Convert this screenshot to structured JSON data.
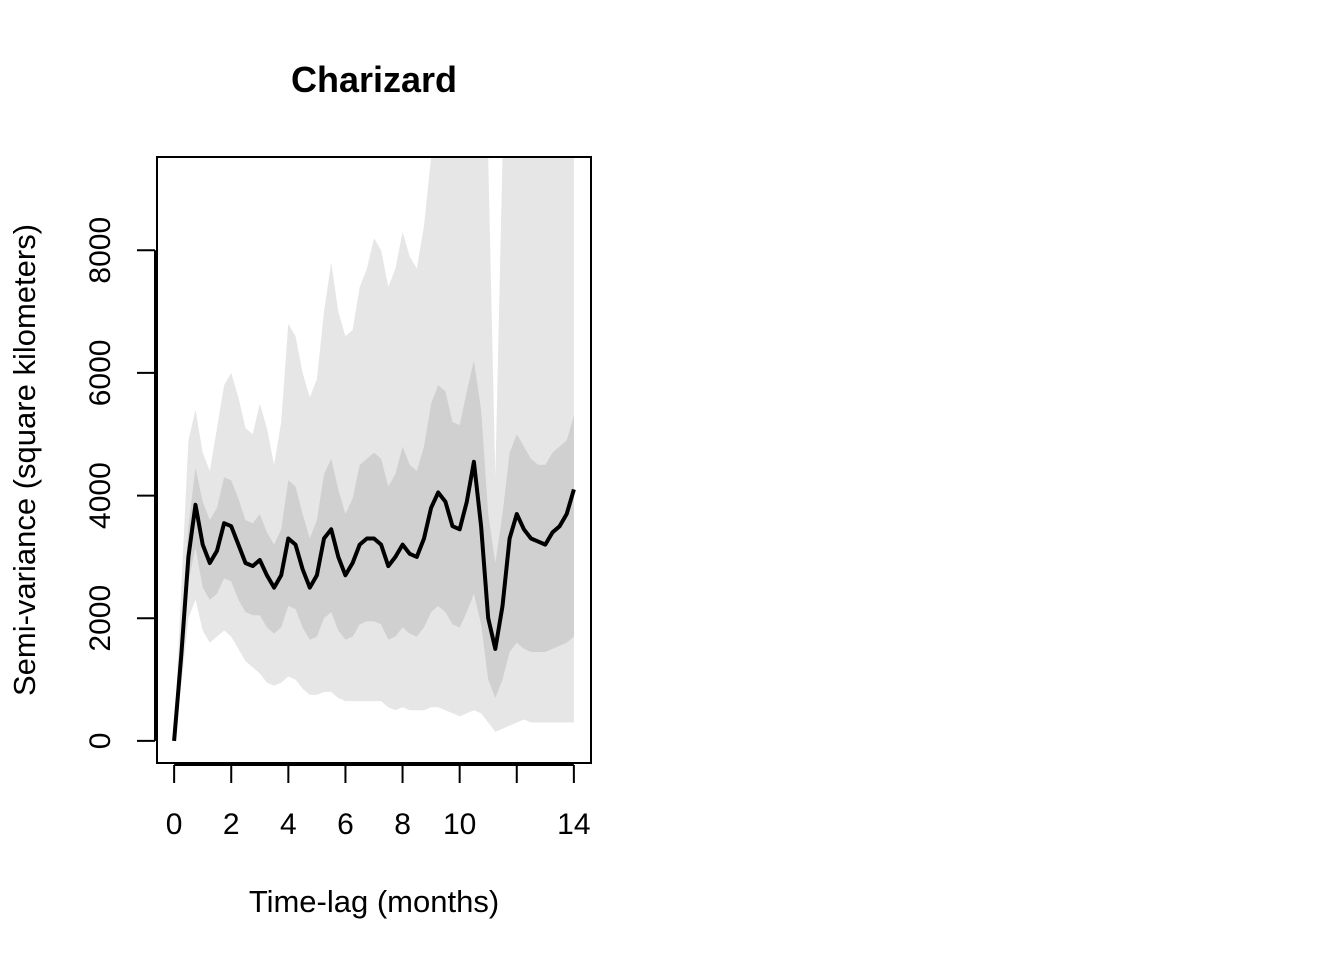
{
  "chart_data": {
    "type": "line",
    "title": "Charizard",
    "xlabel": "Time-lag (months)",
    "ylabel": "Semi-variance (square kilometers)",
    "xlim": [
      -0.6,
      14.6
    ],
    "ylim": [
      -360,
      9520
    ],
    "x_ticks": [
      0,
      2,
      4,
      6,
      8,
      10,
      12,
      14
    ],
    "x_tick_labels": [
      "0",
      "2",
      "4",
      "6",
      "8",
      "10",
      "",
      "14"
    ],
    "y_ticks": [
      0,
      2000,
      4000,
      6000,
      8000
    ],
    "y_tick_labels": [
      "0",
      "2000",
      "4000",
      "6000",
      "8000"
    ],
    "grid": false,
    "colors": {
      "line": "#000000",
      "band_outer": "#e6e6e6",
      "band_inner": "#d0d0d0"
    },
    "series": [
      {
        "x": [
          0,
          0.25,
          0.5,
          0.75,
          1.0,
          1.25,
          1.5,
          1.75,
          2.0,
          2.25,
          2.5,
          2.75,
          3.0,
          3.25,
          3.5,
          3.75,
          4.0,
          4.25,
          4.5,
          4.75,
          5.0,
          5.25,
          5.5,
          5.75,
          6.0,
          6.25,
          6.5,
          6.75,
          7.0,
          7.25,
          7.5,
          7.75,
          8.0,
          8.25,
          8.5,
          8.75,
          9.0,
          9.25,
          9.5,
          9.75,
          10.0,
          10.25,
          10.5,
          10.75,
          11.0,
          11.25,
          11.5,
          11.75,
          12.0,
          12.25,
          12.5,
          12.75,
          13.0,
          13.25,
          13.5,
          13.75,
          14.0
        ],
        "y": [
          0,
          1400,
          3000,
          3850,
          3200,
          2900,
          3100,
          3550,
          3500,
          3200,
          2900,
          2850,
          2950,
          2700,
          2500,
          2700,
          3300,
          3200,
          2800,
          2500,
          2700,
          3300,
          3450,
          3000,
          2700,
          2900,
          3200,
          3300,
          3300,
          3200,
          2850,
          3000,
          3200,
          3050,
          3000,
          3300,
          3800,
          4050,
          3900,
          3500,
          3450,
          3900,
          4550,
          3500,
          2000,
          1500,
          2200,
          3300,
          3700,
          3450,
          3300,
          3250,
          3200,
          3400,
          3500,
          3700,
          4100
        ]
      }
    ],
    "bands": [
      {
        "level": "outer",
        "x": [
          0,
          0.25,
          0.5,
          0.75,
          1.0,
          1.25,
          1.5,
          1.75,
          2.0,
          2.25,
          2.5,
          2.75,
          3.0,
          3.25,
          3.5,
          3.75,
          4.0,
          4.25,
          4.5,
          4.75,
          5.0,
          5.25,
          5.5,
          5.75,
          6.0,
          6.25,
          6.5,
          6.75,
          7.0,
          7.25,
          7.5,
          7.75,
          8.0,
          8.25,
          8.5,
          8.75,
          9.0,
          9.25,
          9.5,
          9.75,
          10.0,
          10.25,
          10.5,
          10.75,
          11.0,
          11.25,
          11.5,
          11.75,
          12.0,
          12.25,
          12.5,
          12.75,
          13.0,
          13.25,
          13.5,
          13.75,
          14.0
        ],
        "low": [
          0,
          900,
          2000,
          2300,
          1800,
          1600,
          1700,
          1800,
          1700,
          1500,
          1300,
          1200,
          1100,
          950,
          900,
          950,
          1050,
          1000,
          850,
          750,
          750,
          800,
          800,
          700,
          650,
          650,
          650,
          650,
          650,
          650,
          550,
          500,
          550,
          500,
          500,
          500,
          550,
          550,
          500,
          450,
          400,
          450,
          500,
          450,
          300,
          150,
          200,
          250,
          300,
          350,
          300,
          300,
          300,
          300,
          300,
          300,
          300
        ],
        "high": [
          0,
          2500,
          4900,
          5400,
          4700,
          4400,
          5100,
          5800,
          6000,
          5600,
          5100,
          5000,
          5500,
          5100,
          4500,
          5200,
          6800,
          6600,
          6000,
          5600,
          5900,
          7000,
          7800,
          7000,
          6600,
          6700,
          7400,
          7700,
          8200,
          8000,
          7400,
          7700,
          8300,
          7900,
          7700,
          8400,
          9520,
          9520,
          9520,
          9520,
          9520,
          9520,
          9520,
          9520,
          9520,
          4300,
          9520,
          9520,
          9520,
          9520,
          9520,
          9520,
          9520,
          9520,
          9520,
          9520,
          9520
        ]
      },
      {
        "level": "inner",
        "x": [
          0,
          0.25,
          0.5,
          0.75,
          1.0,
          1.25,
          1.5,
          1.75,
          2.0,
          2.25,
          2.5,
          2.75,
          3.0,
          3.25,
          3.5,
          3.75,
          4.0,
          4.25,
          4.5,
          4.75,
          5.0,
          5.25,
          5.5,
          5.75,
          6.0,
          6.25,
          6.5,
          6.75,
          7.0,
          7.25,
          7.5,
          7.75,
          8.0,
          8.25,
          8.5,
          8.75,
          9.0,
          9.25,
          9.5,
          9.75,
          10.0,
          10.25,
          10.5,
          10.75,
          11.0,
          11.25,
          11.5,
          11.75,
          12.0,
          12.25,
          12.5,
          12.75,
          13.0,
          13.25,
          13.5,
          13.75,
          14.0
        ],
        "low": [
          0,
          1200,
          2600,
          3150,
          2500,
          2300,
          2400,
          2650,
          2600,
          2300,
          2100,
          2050,
          2050,
          1850,
          1750,
          1850,
          2200,
          2150,
          1850,
          1650,
          1700,
          2000,
          2100,
          1800,
          1650,
          1700,
          1900,
          1950,
          1950,
          1900,
          1650,
          1700,
          1850,
          1750,
          1700,
          1850,
          2100,
          2200,
          2100,
          1900,
          1850,
          2100,
          2400,
          1900,
          1000,
          700,
          1000,
          1450,
          1600,
          1500,
          1450,
          1450,
          1450,
          1500,
          1550,
          1600,
          1700
        ],
        "high": [
          0,
          1700,
          3500,
          4450,
          3900,
          3600,
          3800,
          4300,
          4250,
          3950,
          3600,
          3550,
          3700,
          3400,
          3200,
          3450,
          4250,
          4150,
          3700,
          3300,
          3600,
          4350,
          4600,
          4100,
          3700,
          3950,
          4500,
          4600,
          4700,
          4600,
          4150,
          4350,
          4800,
          4500,
          4400,
          4800,
          5500,
          5800,
          5700,
          5200,
          5150,
          5700,
          6200,
          5400,
          3700,
          2900,
          3700,
          4700,
          5000,
          4800,
          4600,
          4500,
          4500,
          4700,
          4800,
          4900,
          5300
        ]
      }
    ]
  }
}
